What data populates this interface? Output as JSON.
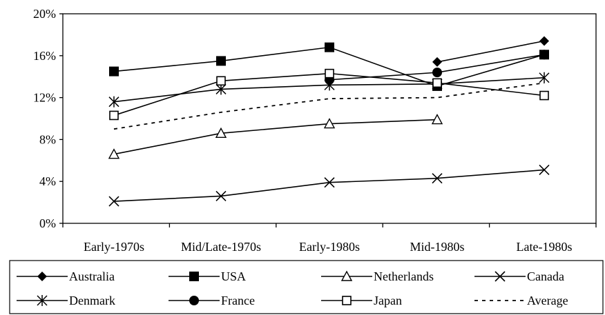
{
  "chart_data": {
    "type": "line",
    "categories": [
      "Early-1970s",
      "Mid/Late-1970s",
      "Early-1980s",
      "Mid-1980s",
      "Late-1980s"
    ],
    "ylim": [
      0,
      20
    ],
    "y_ticks": [
      0,
      4,
      8,
      12,
      16,
      20
    ],
    "y_tick_labels": [
      "0%",
      "4%",
      "8%",
      "12%",
      "16%",
      "20%"
    ],
    "grid": false,
    "legend_position": "bottom",
    "title": "",
    "xlabel": "",
    "ylabel": "",
    "series": [
      {
        "name": "Australia",
        "marker": "diamond-filled",
        "values": [
          null,
          null,
          null,
          15.4,
          17.4
        ]
      },
      {
        "name": "USA",
        "marker": "square-filled",
        "values": [
          14.5,
          15.5,
          16.8,
          13.1,
          16.1
        ]
      },
      {
        "name": "Netherlands",
        "marker": "triangle-open",
        "values": [
          6.6,
          8.6,
          9.5,
          9.9,
          null
        ]
      },
      {
        "name": "Canada",
        "marker": "x",
        "values": [
          2.1,
          2.6,
          3.9,
          4.3,
          5.1
        ]
      },
      {
        "name": "Denmark",
        "marker": "asterisk",
        "values": [
          11.6,
          12.8,
          13.2,
          13.3,
          13.9
        ]
      },
      {
        "name": "France",
        "marker": "circle-filled",
        "values": [
          null,
          null,
          13.7,
          14.4,
          16.1
        ]
      },
      {
        "name": "Japan",
        "marker": "square-open",
        "values": [
          10.3,
          13.6,
          14.3,
          13.4,
          12.2
        ]
      },
      {
        "name": "Average",
        "marker": "none",
        "dashed": true,
        "values": [
          9.0,
          10.6,
          11.9,
          12.0,
          13.4
        ]
      }
    ]
  }
}
